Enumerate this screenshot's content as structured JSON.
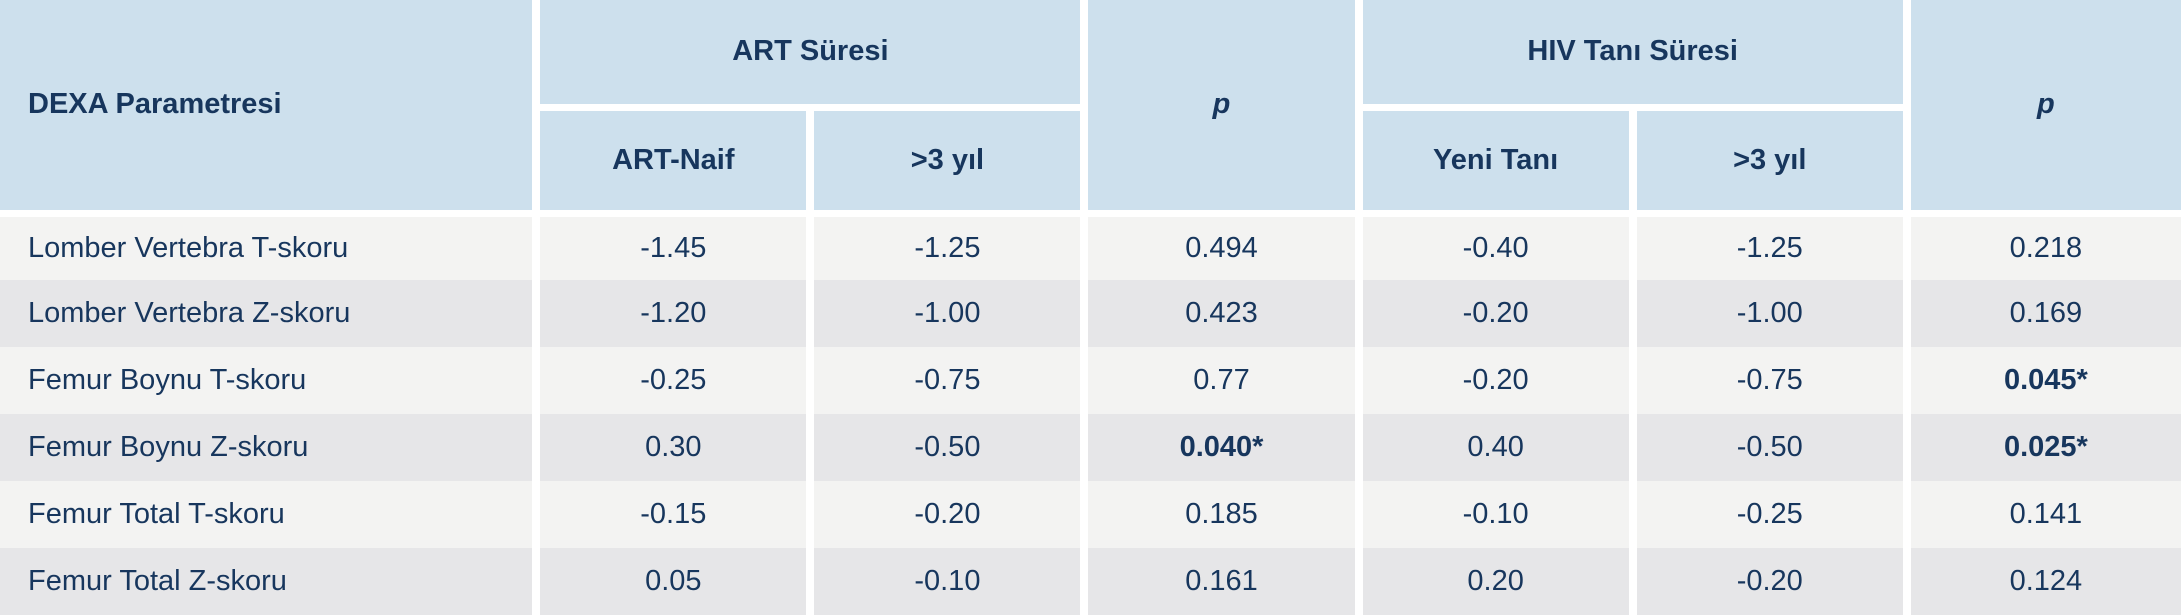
{
  "colors": {
    "header_bg": "#cde0ed",
    "text_navy": "#17365d",
    "row_odd_bg": "#f3f3f2",
    "row_even_bg": "#e6e6e8",
    "divider": "#ffffff"
  },
  "table": {
    "header": {
      "param": "DEXA Parametresi",
      "group_art": "ART Süresi",
      "group_hiv": "HIV Tanı Süresi",
      "p": "p",
      "sub_art_naive": "ART-Naif",
      "sub_art_gt3": ">3 yıl",
      "sub_hiv_new": "Yeni Tanı",
      "sub_hiv_gt3": ">3 yıl"
    },
    "rows": [
      {
        "param": "Lomber Vertebra T-skoru",
        "art_naive": "-1.45",
        "art_gt3": "-1.25",
        "p_art": "0.494",
        "p_art_sig": false,
        "hiv_new": "-0.40",
        "hiv_gt3": "-1.25",
        "p_hiv": "0.218",
        "p_hiv_sig": false
      },
      {
        "param": "Lomber Vertebra Z-skoru",
        "art_naive": "-1.20",
        "art_gt3": "-1.00",
        "p_art": "0.423",
        "p_art_sig": false,
        "hiv_new": "-0.20",
        "hiv_gt3": "-1.00",
        "p_hiv": "0.169",
        "p_hiv_sig": false
      },
      {
        "param": "Femur Boynu T-skoru",
        "art_naive": "-0.25",
        "art_gt3": "-0.75",
        "p_art": "0.77",
        "p_art_sig": false,
        "hiv_new": "-0.20",
        "hiv_gt3": "-0.75",
        "p_hiv": "0.045*",
        "p_hiv_sig": true
      },
      {
        "param": "Femur Boynu Z-skoru",
        "art_naive": "0.30",
        "art_gt3": "-0.50",
        "p_art": "0.040*",
        "p_art_sig": true,
        "hiv_new": "0.40",
        "hiv_gt3": "-0.50",
        "p_hiv": "0.025*",
        "p_hiv_sig": true
      },
      {
        "param": "Femur Total T-skoru",
        "art_naive": "-0.15",
        "art_gt3": "-0.20",
        "p_art": "0.185",
        "p_art_sig": false,
        "hiv_new": "-0.10",
        "hiv_gt3": "-0.25",
        "p_hiv": "0.141",
        "p_hiv_sig": false
      },
      {
        "param": "Femur Total Z-skoru",
        "art_naive": "0.05",
        "art_gt3": "-0.10",
        "p_art": "0.161",
        "p_art_sig": false,
        "hiv_new": "0.20",
        "hiv_gt3": "-0.20",
        "p_hiv": "0.124",
        "p_hiv_sig": false
      }
    ]
  }
}
